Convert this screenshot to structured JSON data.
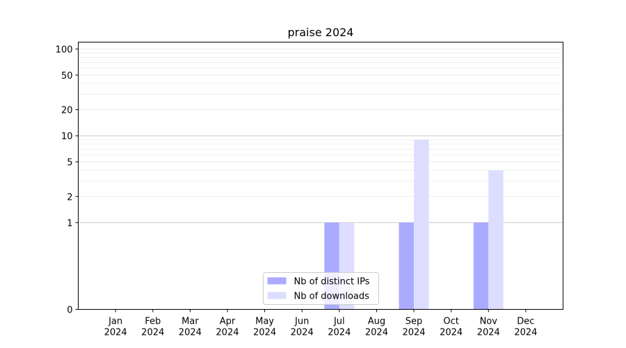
{
  "chart_data": {
    "type": "bar",
    "title": "praise 2024",
    "xlabel": "",
    "ylabel": "",
    "y_scale": "symlog",
    "ylim": [
      0,
      120
    ],
    "y_ticks": [
      0,
      1,
      2,
      5,
      10,
      20,
      50,
      100
    ],
    "y_tick_labels": [
      "0",
      "1",
      "2",
      "5",
      "10",
      "20",
      "50",
      "100"
    ],
    "grid": "horizontal",
    "legend_position": "bottom-center",
    "categories": [
      [
        "Jan",
        "2024"
      ],
      [
        "Feb",
        "2024"
      ],
      [
        "Mar",
        "2024"
      ],
      [
        "Apr",
        "2024"
      ],
      [
        "May",
        "2024"
      ],
      [
        "Jun",
        "2024"
      ],
      [
        "Jul",
        "2024"
      ],
      [
        "Aug",
        "2024"
      ],
      [
        "Sep",
        "2024"
      ],
      [
        "Oct",
        "2024"
      ],
      [
        "Nov",
        "2024"
      ],
      [
        "Dec",
        "2024"
      ]
    ],
    "series": [
      {
        "name": "Nb of distinct IPs",
        "color": "#aaaaff",
        "values": [
          0,
          0,
          0,
          0,
          0,
          0,
          1,
          0,
          1,
          0,
          1,
          0
        ]
      },
      {
        "name": "Nb of downloads",
        "color": "#ddddff",
        "values": [
          0,
          0,
          0,
          0,
          0,
          0,
          1,
          0,
          9,
          0,
          4,
          0
        ]
      }
    ]
  }
}
